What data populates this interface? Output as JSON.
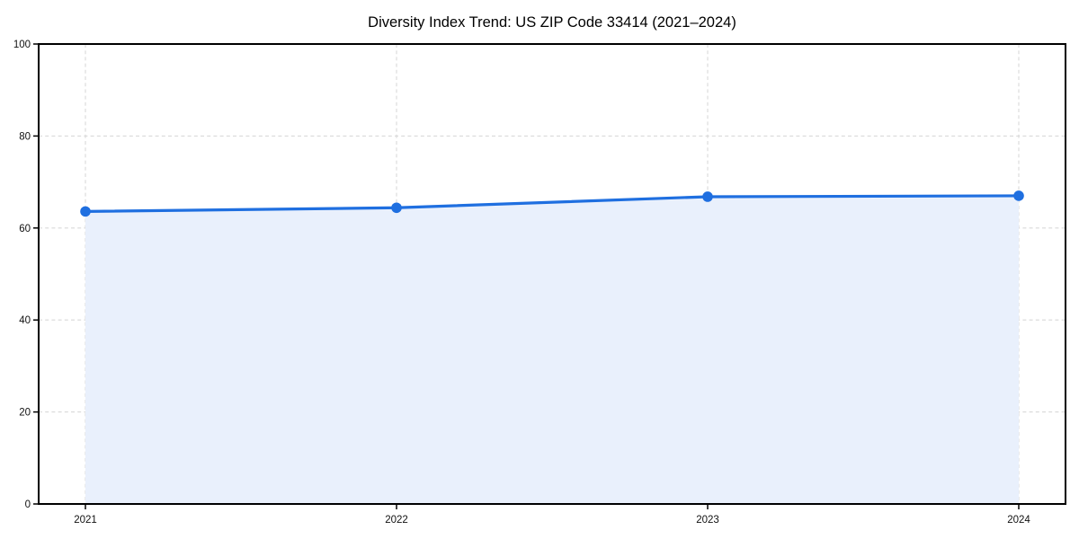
{
  "chart_data": {
    "type": "area",
    "title": "Diversity Index Trend: US ZIP Code 33414 (2021–2024)",
    "series_name": "Diversity Index",
    "x": [
      "2021",
      "2022",
      "2023",
      "2024"
    ],
    "values": [
      63.6,
      64.4,
      66.8,
      67.0
    ],
    "xlabel": "",
    "ylabel": "",
    "ylim": [
      0,
      100
    ],
    "yticks": [
      0,
      20,
      40,
      60,
      80,
      100
    ],
    "grid": true,
    "grid_style": "dashed",
    "legend_position": "none",
    "colors": {
      "line": "#1f6fe0",
      "marker": "#1f6fe0",
      "area_fill": "#e9f0fc",
      "grid": "#d9d9d9",
      "spine": "#000000",
      "text": "#000000",
      "background": "#ffffff"
    }
  }
}
